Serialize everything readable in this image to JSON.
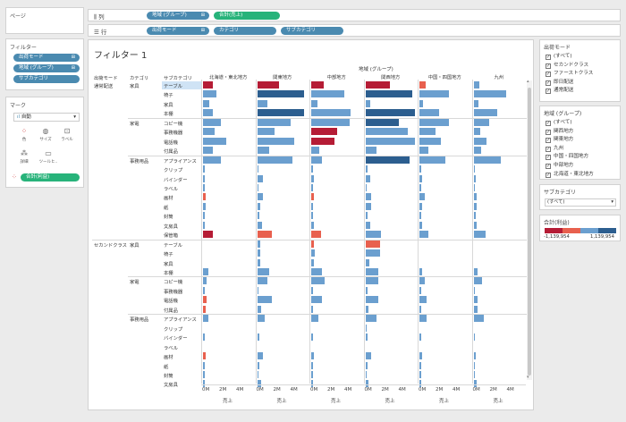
{
  "shelves": {
    "pages_label": "ページ",
    "columns_label": "列",
    "rows_label": "行",
    "columns_pills": [
      {
        "label": "地域 (グループ)",
        "color": "blue",
        "icon": "group-icon"
      },
      {
        "label": "合計(売上)",
        "color": "green",
        "icon": ""
      }
    ],
    "rows_pills": [
      {
        "label": "出荷モード",
        "color": "blue",
        "icon": "group-icon"
      },
      {
        "label": "カテゴリ",
        "color": "blue",
        "icon": ""
      },
      {
        "label": "サブカテゴリ",
        "color": "blue",
        "icon": ""
      }
    ]
  },
  "filters": {
    "title": "フィルター",
    "items": [
      "出荷モード",
      "地域 (グループ)",
      "サブカテゴリ"
    ]
  },
  "marks": {
    "title": "マーク",
    "type": "自動",
    "buttons": [
      {
        "label": "色",
        "icon": "color-icon"
      },
      {
        "label": "サイズ",
        "icon": "size-icon"
      },
      {
        "label": "ラベル",
        "icon": "label-icon"
      },
      {
        "label": "詳細",
        "icon": "detail-icon"
      },
      {
        "label": "ツールヒ..",
        "icon": "tooltip-icon"
      }
    ],
    "color_pill": "合計(利益)"
  },
  "sheet": {
    "title": "フィルター 1",
    "group_header": "地域 (グループ)",
    "row_headers": [
      "出荷モード",
      "カテゴリ",
      "サブカテゴリ"
    ],
    "axis_ticks": [
      "0M",
      "2M",
      "4M"
    ],
    "axis_title": "売上"
  },
  "chart_data": {
    "type": "bar",
    "orientation": "horizontal",
    "x_unit": "M",
    "xlim": [
      0,
      5
    ],
    "color_measure": "合計(利益)",
    "color_range": [
      -1139954,
      1139954
    ],
    "columns": [
      "北海道・東北地方",
      "関東地方",
      "中部地方",
      "関西地方",
      "中国・四国地方",
      "九州"
    ],
    "groups": [
      {
        "ship": "通常配送",
        "categories": [
          {
            "name": "家具",
            "subs": [
              "テーブル",
              "椅子",
              "家具",
              "本棚"
            ]
          },
          {
            "name": "家電",
            "subs": [
              "コピー機",
              "事務機器",
              "電話機",
              "付属品"
            ]
          },
          {
            "name": "事務用品",
            "subs": [
              "アプライアンス",
              "クリップ",
              "バインダー",
              "ラベル",
              "画材",
              "紙",
              "封筒",
              "文房具",
              "保管箱"
            ]
          }
        ]
      },
      {
        "ship": "セカンドクラス",
        "categories": [
          {
            "name": "家具",
            "subs": [
              "テーブル",
              "椅子",
              "家具",
              "本棚"
            ]
          },
          {
            "name": "家電",
            "subs": [
              "コピー機",
              "事務機器",
              "電話機",
              "付属品"
            ]
          },
          {
            "name": "事務用品",
            "subs": [
              "アプライアンス",
              "クリップ",
              "バインダー",
              "ラベル",
              "画材",
              "紙",
              "封筒",
              "文房具"
            ]
          }
        ]
      }
    ],
    "values": [
      [
        1.0,
        2.2,
        1.3,
        2.5,
        0.6,
        0.6
      ],
      [
        1.4,
        4.8,
        3.4,
        4.8,
        3.0,
        3.3
      ],
      [
        0.6,
        1.0,
        0.6,
        0.5,
        0.4,
        0.5
      ],
      [
        1.0,
        4.8,
        4.0,
        6.2,
        2.0,
        2.4
      ],
      [
        1.8,
        3.4,
        3.9,
        3.4,
        3.0,
        1.6
      ],
      [
        1.2,
        1.8,
        2.6,
        4.3,
        1.6,
        0.7
      ],
      [
        2.4,
        3.8,
        2.4,
        5.0,
        2.2,
        1.3
      ],
      [
        1.0,
        1.2,
        0.8,
        1.1,
        0.9,
        0.8
      ],
      [
        1.8,
        3.6,
        1.1,
        4.5,
        2.6,
        2.8
      ],
      [
        0.1,
        0.1,
        0.1,
        0.2,
        0.1,
        0.1
      ],
      [
        0.2,
        0.6,
        0.3,
        0.5,
        0.3,
        0.2
      ],
      [
        0.1,
        0.1,
        0.1,
        0.1,
        0.1,
        0.1
      ],
      [
        0.3,
        0.6,
        0.3,
        0.6,
        0.5,
        0.3
      ],
      [
        0.3,
        0.3,
        0.2,
        0.6,
        0.3,
        0.3
      ],
      [
        0.1,
        0.2,
        0.2,
        0.2,
        0.1,
        0.2
      ],
      [
        0.2,
        0.5,
        0.3,
        0.5,
        0.3,
        0.3
      ],
      [
        1.0,
        1.5,
        1.0,
        1.6,
        0.9,
        1.2
      ],
      [
        0.0,
        0.3,
        0.3,
        1.5,
        0.0,
        0.0
      ],
      [
        0.0,
        0.3,
        0.4,
        1.5,
        0.0,
        0.0
      ],
      [
        0.0,
        0.3,
        0.3,
        0.4,
        0.0,
        0.0
      ],
      [
        0.5,
        1.2,
        1.1,
        1.3,
        0.3,
        0.4
      ],
      [
        0.4,
        1.0,
        1.4,
        1.3,
        0.5,
        0.9
      ],
      [
        0.1,
        0.1,
        0.1,
        0.2,
        0.1,
        0.1
      ],
      [
        0.4,
        1.5,
        1.1,
        1.3,
        0.7,
        0.4
      ],
      [
        0.3,
        0.4,
        0.1,
        0.3,
        0.2,
        0.4
      ],
      [
        0.5,
        0.8,
        0.7,
        1.1,
        0.7,
        1.0
      ],
      [
        0.0,
        0.0,
        0.0,
        0.1,
        0.0,
        0.0
      ],
      [
        0.1,
        0.2,
        0.1,
        0.2,
        0.1,
        0.1
      ],
      [
        0.0,
        0.0,
        0.0,
        0.0,
        0.0,
        0.0
      ],
      [
        0.3,
        0.6,
        0.3,
        0.6,
        0.3,
        0.2
      ],
      [
        0.1,
        0.2,
        0.1,
        0.2,
        0.1,
        0.1
      ],
      [
        0.1,
        0.1,
        0.1,
        0.1,
        0.1,
        0.1
      ],
      [
        0.2,
        0.4,
        0.2,
        0.3,
        0.2,
        0.3
      ]
    ],
    "profit": [
      [
        -0.7,
        -0.6,
        -0.9,
        -0.5,
        -0.3,
        0.1
      ],
      [
        0.3,
        0.8,
        0.4,
        0.8,
        0.5,
        0.5
      ],
      [
        0.2,
        0.2,
        0.2,
        0.2,
        0.2,
        0.2
      ],
      [
        0.2,
        0.8,
        0.6,
        0.9,
        0.6,
        0.6
      ],
      [
        0.3,
        0.3,
        0.4,
        0.7,
        0.4,
        0.3
      ],
      [
        0.2,
        0.2,
        -0.5,
        0.5,
        0.3,
        0.2
      ],
      [
        0.3,
        0.3,
        -0.6,
        0.3,
        0.3,
        0.2
      ],
      [
        0.2,
        0.2,
        0.2,
        0.2,
        0.2,
        0.2
      ],
      [
        0.3,
        0.4,
        0.2,
        0.9,
        0.4,
        0.3
      ],
      [
        0.1,
        0.1,
        0.1,
        0.1,
        0.1,
        0.1
      ],
      [
        0.1,
        0.1,
        0.1,
        0.1,
        0.1,
        0.1
      ],
      [
        0.1,
        0.1,
        0.1,
        0.1,
        0.1,
        0.1
      ],
      [
        -0.4,
        0.1,
        -0.3,
        0.1,
        0.1,
        0.1
      ],
      [
        0.1,
        0.1,
        0.1,
        0.1,
        0.1,
        0.1
      ],
      [
        0.1,
        0.1,
        0.1,
        0.1,
        0.1,
        0.1
      ],
      [
        0.1,
        0.1,
        0.1,
        0.1,
        0.1,
        0.1
      ],
      [
        -0.5,
        -0.4,
        -0.4,
        0.2,
        0.2,
        0.2
      ],
      [
        0.0,
        0.1,
        -0.3,
        -0.4,
        0.0,
        0.0
      ],
      [
        0.0,
        0.1,
        0.2,
        0.2,
        0.0,
        0.0
      ],
      [
        0.0,
        0.1,
        0.1,
        0.1,
        0.0,
        0.0
      ],
      [
        0.2,
        0.2,
        0.2,
        0.2,
        0.1,
        0.1
      ],
      [
        0.1,
        0.2,
        0.2,
        0.2,
        0.1,
        0.1
      ],
      [
        0.1,
        0.1,
        0.1,
        0.1,
        0.1,
        0.1
      ],
      [
        -0.3,
        0.2,
        0.2,
        0.2,
        0.1,
        0.1
      ],
      [
        -0.4,
        0.1,
        0.1,
        0.1,
        0.1,
        0.1
      ],
      [
        0.1,
        0.1,
        0.1,
        0.1,
        0.1,
        0.1
      ],
      [
        0.0,
        0.0,
        0.0,
        0.1,
        0.0,
        0.0
      ],
      [
        0.1,
        0.1,
        0.1,
        0.1,
        0.1,
        0.1
      ],
      [
        0.0,
        0.0,
        0.0,
        0.0,
        0.0,
        0.0
      ],
      [
        -0.2,
        0.1,
        0.1,
        0.1,
        0.1,
        0.1
      ],
      [
        0.1,
        0.1,
        0.1,
        0.1,
        0.1,
        0.1
      ],
      [
        0.1,
        0.1,
        0.1,
        0.1,
        0.1,
        0.1
      ],
      [
        0.1,
        0.1,
        0.1,
        0.1,
        0.1,
        0.1
      ]
    ]
  },
  "right_panel": {
    "ship_filter": {
      "title": "出荷モード",
      "items": [
        "(すべて)",
        "セカンドクラス",
        "ファーストクラス",
        "即日配送",
        "通常配送"
      ]
    },
    "region_filter": {
      "title": "地域 (グループ)",
      "items": [
        "(すべて)",
        "関西地方",
        "関東地方",
        "九州",
        "中国・四国地方",
        "中部地方",
        "北海道・東北地方"
      ]
    },
    "subcat_filter": {
      "title": "サブカテゴリ",
      "value": "(すべて)"
    },
    "legend": {
      "title": "合計(利益)",
      "min": "-1,139,954",
      "max": "1,139,954"
    }
  },
  "colors": {
    "neg_strong": "#b51c35",
    "neg_light": "#e8604e",
    "pos_light": "#6b9fcf",
    "pos_strong": "#2c5e8f",
    "selection": "#cfe3f5"
  }
}
